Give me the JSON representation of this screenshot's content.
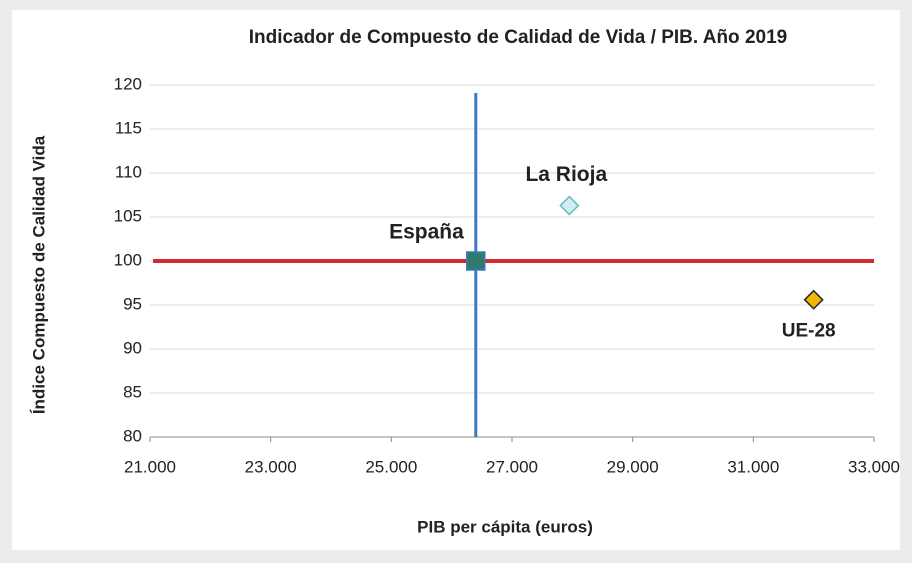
{
  "chart_data": {
    "type": "scatter",
    "title": "Indicador de Compuesto de Calidad de Vida / PIB. Año 2019",
    "xlabel": "PIB per cápita (euros)",
    "ylabel": "Índice Compuesto de Calidad Vida",
    "series": [
      {
        "name": "España",
        "color": "#2e7a6e",
        "x": [
          26400
        ],
        "values": [
          100
        ]
      },
      {
        "name": "La Rioja",
        "color": "#d3eef2",
        "x": [
          27950
        ],
        "values": [
          106.3
        ]
      },
      {
        "name": "UE-28",
        "color": "#f2b705",
        "x": [
          32000
        ],
        "values": [
          95.6
        ]
      }
    ],
    "reference_lines": {
      "x": 26400,
      "y": 100
    },
    "xlim": [
      21000,
      33000
    ],
    "xticks": [
      {
        "value": 21000,
        "label": "21.000"
      },
      {
        "value": 23000,
        "label": "23.000"
      },
      {
        "value": 25000,
        "label": "25.000"
      },
      {
        "value": 27000,
        "label": "27.000"
      },
      {
        "value": 29000,
        "label": "29.000"
      },
      {
        "value": 31000,
        "label": "31.000"
      },
      {
        "value": 33000,
        "label": "33.000"
      }
    ],
    "ylim": [
      80,
      120
    ],
    "yticks": [
      80,
      85,
      90,
      95,
      100,
      105,
      110,
      115,
      120
    ],
    "grid": true
  }
}
